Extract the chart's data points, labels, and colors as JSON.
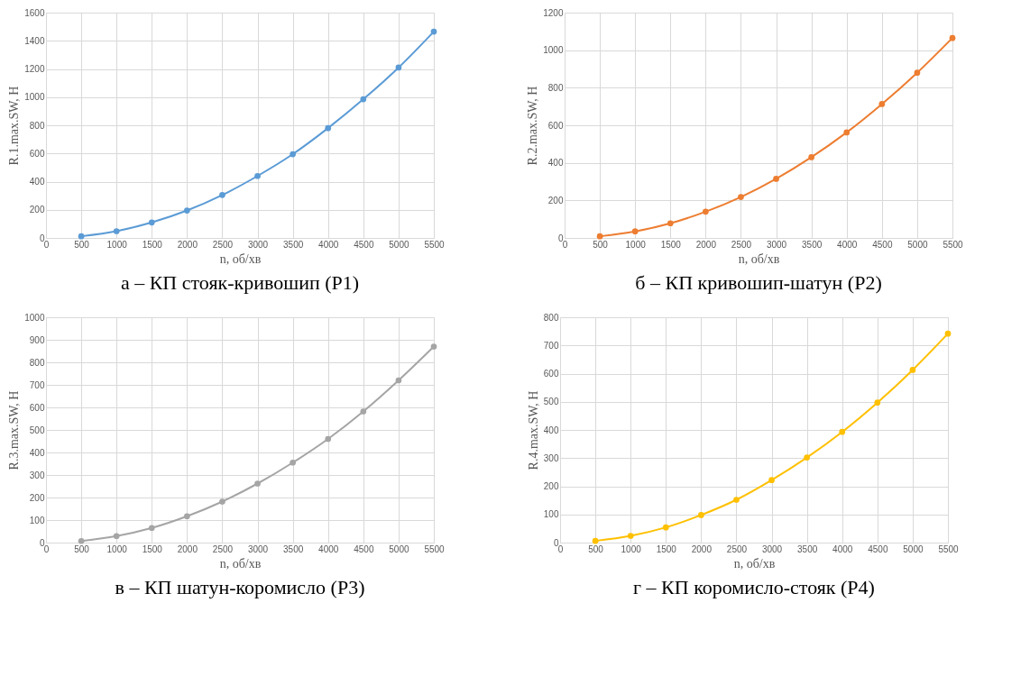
{
  "chart_data": [
    {
      "type": "line",
      "title": "а – КП стояк-кривошип (Р1)",
      "xlabel": "n, об/хв",
      "ylabel": "R.1.max.SW, Н",
      "x": [
        500,
        1000,
        1500,
        2000,
        2500,
        3000,
        3500,
        4000,
        4500,
        5000,
        5500
      ],
      "xlim": [
        0,
        5500
      ],
      "xticks": [
        0,
        500,
        1000,
        1500,
        2000,
        2500,
        3000,
        3500,
        4000,
        4500,
        5000,
        5500
      ],
      "ylim": [
        0,
        1600
      ],
      "yticks": [
        0,
        200,
        400,
        600,
        800,
        1000,
        1200,
        1400,
        1600
      ],
      "grid": true,
      "marker": "circle",
      "series": [
        {
          "color": "#5b9bd5",
          "values": [
            12,
            48,
            110,
            195,
            305,
            440,
            595,
            780,
            985,
            1210,
            1465
          ]
        }
      ]
    },
    {
      "type": "line",
      "title": "б – КП кривошип-шатун (Р2)",
      "xlabel": "n, об/хв",
      "ylabel": "R.2.max.SW, Н",
      "x": [
        500,
        1000,
        1500,
        2000,
        2500,
        3000,
        3500,
        4000,
        4500,
        5000,
        5500
      ],
      "xlim": [
        0,
        5500
      ],
      "xticks": [
        0,
        500,
        1000,
        1500,
        2000,
        2500,
        3000,
        3500,
        4000,
        4500,
        5000,
        5500
      ],
      "ylim": [
        0,
        1200
      ],
      "yticks": [
        0,
        200,
        400,
        600,
        800,
        1000,
        1200
      ],
      "grid": true,
      "marker": "circle",
      "series": [
        {
          "color": "#ed7d31",
          "values": [
            9,
            35,
            78,
            140,
            218,
            315,
            430,
            562,
            713,
            880,
            1065
          ]
        }
      ]
    },
    {
      "type": "line",
      "title": "в – КП шатун-коромисло (Р3)",
      "xlabel": "n, об/хв",
      "ylabel": "R.3.max.SW, Н",
      "x": [
        500,
        1000,
        1500,
        2000,
        2500,
        3000,
        3500,
        4000,
        4500,
        5000,
        5500
      ],
      "xlim": [
        0,
        5500
      ],
      "xticks": [
        0,
        500,
        1000,
        1500,
        2000,
        2500,
        3000,
        3500,
        4000,
        4500,
        5000,
        5500
      ],
      "ylim": [
        0,
        1000
      ],
      "yticks": [
        0,
        100,
        200,
        300,
        400,
        500,
        600,
        700,
        800,
        900,
        1000
      ],
      "grid": true,
      "marker": "circle",
      "series": [
        {
          "color": "#a5a5a5",
          "values": [
            7,
            29,
            65,
            117,
            182,
            262,
            355,
            460,
            582,
            720,
            870
          ]
        }
      ]
    },
    {
      "type": "line",
      "title": "г – КП коромисло-стояк (Р4)",
      "xlabel": "n, об/хв",
      "ylabel": "R.4.max.SW, Н",
      "x": [
        500,
        1000,
        1500,
        2000,
        2500,
        3000,
        3500,
        4000,
        4500,
        5000,
        5500
      ],
      "xlim": [
        0,
        5500
      ],
      "xticks": [
        0,
        500,
        1000,
        1500,
        2000,
        2500,
        3000,
        3500,
        4000,
        4500,
        5000,
        5500
      ],
      "ylim": [
        0,
        800
      ],
      "yticks": [
        0,
        100,
        200,
        300,
        400,
        500,
        600,
        700,
        800
      ],
      "grid": true,
      "marker": "circle",
      "series": [
        {
          "color": "#ffc000",
          "values": [
            6,
            24,
            54,
            98,
            152,
            222,
            302,
            393,
            497,
            613,
            742
          ]
        }
      ]
    }
  ]
}
